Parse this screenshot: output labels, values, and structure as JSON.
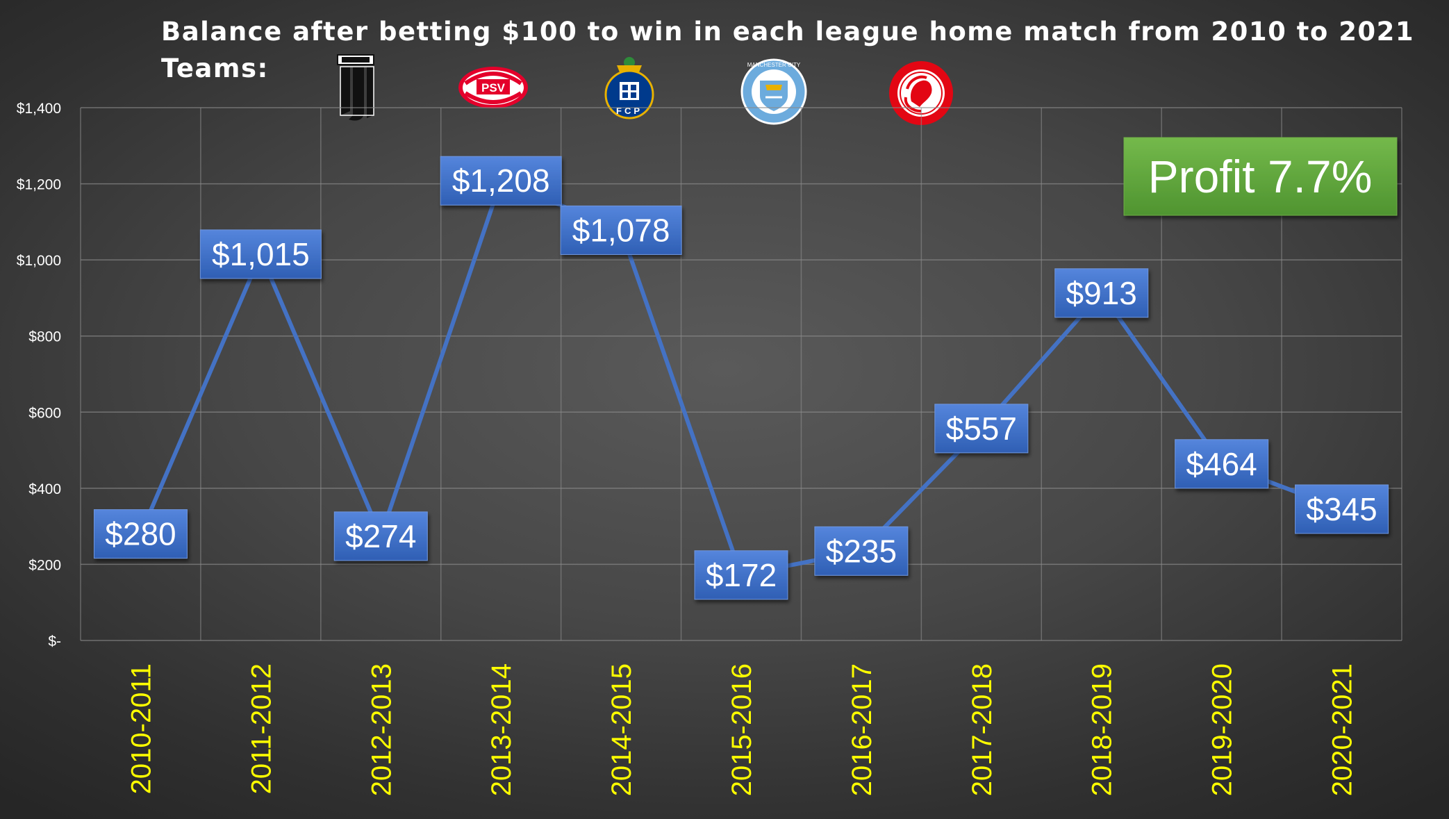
{
  "chart_data": {
    "type": "line",
    "title": "Balance after betting $100 to win in each league home match from 2010 to 2021",
    "subtitle": "Teams:",
    "teams": [
      {
        "icon": "juventus-logo-icon",
        "color": "#111111"
      },
      {
        "icon": "psv-logo-icon",
        "color": "#e4002b",
        "text": "PSV"
      },
      {
        "icon": "porto-logo-icon",
        "color": "#003a8c",
        "text": "FCP"
      },
      {
        "icon": "manchester-city-logo-icon",
        "color": "#6cabdd",
        "text": "MANCHESTER CITY"
      },
      {
        "icon": "olympiacos-logo-icon",
        "color": "#e30613"
      }
    ],
    "categories": [
      "2010-2011",
      "2011-2012",
      "2012-2013",
      "2013-2014",
      "2014-2015",
      "2015-2016",
      "2016-2017",
      "2017-2018",
      "2018-2019",
      "2019-2020",
      "2020-2021"
    ],
    "series": [
      {
        "values": [
          280,
          1015,
          274,
          1208,
          1078,
          172,
          235,
          557,
          913,
          464,
          345
        ],
        "labels": [
          "$280",
          "$1,015",
          "$274",
          "$1,208",
          "$1,078",
          "$172",
          "$235",
          "$557",
          "$913",
          "$464",
          "$345"
        ],
        "color": "#4472c4"
      }
    ],
    "ylim": [
      0,
      1400
    ],
    "yticks": [
      {
        "value": 0,
        "label": "$-"
      },
      {
        "value": 200,
        "label": "$200"
      },
      {
        "value": 400,
        "label": "$400"
      },
      {
        "value": 600,
        "label": "$600"
      },
      {
        "value": 800,
        "label": "$800"
      },
      {
        "value": 1000,
        "label": "$1,000"
      },
      {
        "value": 1200,
        "label": "$1,200"
      },
      {
        "value": 1400,
        "label": "$1,400"
      }
    ],
    "grid": true,
    "annotation": {
      "text": "Profit 7.7%",
      "color": "#5fa63c"
    },
    "colors": {
      "tick_x": "#ffff00",
      "tick_y": "#ffffff",
      "label_box": "#4472c4"
    }
  }
}
